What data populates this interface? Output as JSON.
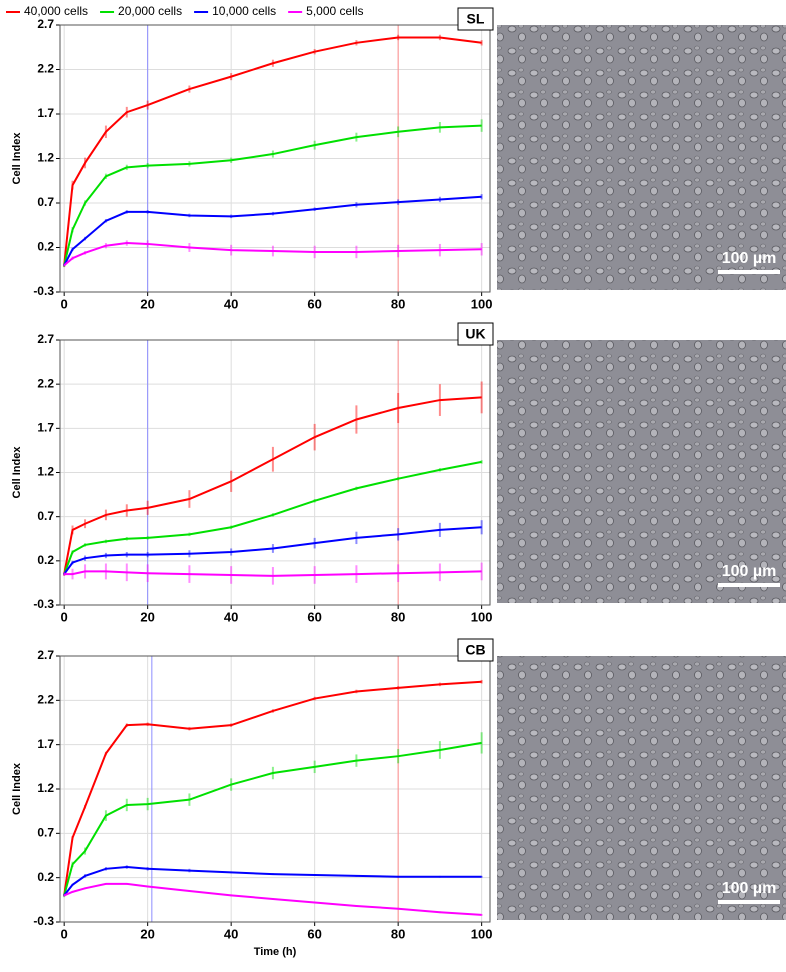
{
  "chart_data": [
    {
      "type": "line",
      "label": "SL",
      "y_label": "Cell Index",
      "x": [
        0,
        2,
        5,
        10,
        15,
        20,
        30,
        40,
        50,
        60,
        70,
        80,
        90,
        100
      ],
      "xlim": [
        -1,
        102
      ],
      "ylim": [
        -0.3,
        2.7
      ],
      "xticks": [
        0,
        20,
        40,
        60,
        80,
        100
      ],
      "yticks": [
        2.7,
        2.2,
        1.7,
        1.2,
        0.7,
        0.2,
        -0.3
      ],
      "grid": true,
      "vlines": [
        {
          "x": 20,
          "color": "#8c8cff"
        },
        {
          "x": 80,
          "color": "#ff8c8c"
        }
      ],
      "scale_bar": "100 µm",
      "series": [
        {
          "name": "40,000 cells",
          "color": "#ff0000",
          "values": [
            0,
            0.9,
            1.15,
            1.5,
            1.72,
            1.8,
            1.98,
            2.12,
            2.27,
            2.4,
            2.5,
            2.56,
            2.56,
            2.5
          ],
          "errors": [
            0.02,
            0.05,
            0.06,
            0.07,
            0.06,
            0.05,
            0.04,
            0.04,
            0.04,
            0.03,
            0.03,
            0.03,
            0.03,
            0.03
          ]
        },
        {
          "name": "20,000 cells",
          "color": "#00e000",
          "values": [
            0,
            0.4,
            0.7,
            1.0,
            1.1,
            1.12,
            1.14,
            1.18,
            1.25,
            1.35,
            1.44,
            1.5,
            1.55,
            1.57
          ],
          "errors": [
            0.02,
            0.03,
            0.03,
            0.03,
            0.03,
            0.03,
            0.03,
            0.03,
            0.04,
            0.05,
            0.05,
            0.06,
            0.06,
            0.07
          ]
        },
        {
          "name": "10,000 cells",
          "color": "#0000ff",
          "values": [
            0,
            0.18,
            0.3,
            0.5,
            0.6,
            0.6,
            0.56,
            0.55,
            0.58,
            0.63,
            0.68,
            0.71,
            0.74,
            0.77
          ],
          "errors": [
            0.01,
            0.02,
            0.02,
            0.02,
            0.02,
            0.02,
            0.02,
            0.02,
            0.02,
            0.02,
            0.03,
            0.03,
            0.03,
            0.03
          ]
        },
        {
          "name": "5,000 cells",
          "color": "#ff00ff",
          "values": [
            0,
            0.08,
            0.14,
            0.22,
            0.25,
            0.24,
            0.2,
            0.17,
            0.16,
            0.15,
            0.15,
            0.16,
            0.17,
            0.18
          ],
          "errors": [
            0.01,
            0.02,
            0.02,
            0.03,
            0.03,
            0.04,
            0.05,
            0.06,
            0.06,
            0.07,
            0.07,
            0.07,
            0.07,
            0.07
          ]
        }
      ]
    },
    {
      "type": "line",
      "label": "UK",
      "y_label": "Cell Index",
      "x": [
        0,
        2,
        5,
        10,
        15,
        20,
        30,
        40,
        50,
        60,
        70,
        80,
        90,
        100
      ],
      "xlim": [
        -1,
        102
      ],
      "ylim": [
        -0.3,
        2.7
      ],
      "xticks": [
        0,
        20,
        40,
        60,
        80,
        100
      ],
      "yticks": [
        2.7,
        2.2,
        1.7,
        1.2,
        0.7,
        0.2,
        -0.3
      ],
      "grid": true,
      "vlines": [
        {
          "x": 20,
          "color": "#8c8cff"
        },
        {
          "x": 80,
          "color": "#ff8c8c"
        }
      ],
      "scale_bar": "100 µm",
      "series": [
        {
          "color": "#ff0000",
          "values": [
            0.05,
            0.55,
            0.62,
            0.72,
            0.77,
            0.8,
            0.9,
            1.1,
            1.35,
            1.6,
            1.8,
            1.93,
            2.02,
            2.05
          ],
          "errors": [
            0.02,
            0.05,
            0.05,
            0.06,
            0.07,
            0.08,
            0.1,
            0.12,
            0.14,
            0.15,
            0.16,
            0.17,
            0.18,
            0.18
          ]
        },
        {
          "color": "#00e000",
          "values": [
            0.05,
            0.3,
            0.38,
            0.42,
            0.45,
            0.46,
            0.5,
            0.58,
            0.72,
            0.88,
            1.02,
            1.13,
            1.23,
            1.32
          ],
          "errors": [
            0.01,
            0.02,
            0.02,
            0.02,
            0.02,
            0.02,
            0.02,
            0.02,
            0.02,
            0.02,
            0.02,
            0.02,
            0.02,
            0.02
          ]
        },
        {
          "color": "#0000ff",
          "values": [
            0.05,
            0.18,
            0.23,
            0.26,
            0.27,
            0.27,
            0.28,
            0.3,
            0.34,
            0.4,
            0.46,
            0.5,
            0.55,
            0.58
          ],
          "errors": [
            0.01,
            0.02,
            0.03,
            0.03,
            0.03,
            0.03,
            0.04,
            0.04,
            0.05,
            0.06,
            0.07,
            0.07,
            0.08,
            0.08
          ]
        },
        {
          "color": "#ff00ff",
          "values": [
            0.05,
            0.05,
            0.08,
            0.08,
            0.07,
            0.06,
            0.05,
            0.04,
            0.03,
            0.04,
            0.05,
            0.06,
            0.07,
            0.08
          ],
          "errors": [
            0.02,
            0.06,
            0.08,
            0.09,
            0.1,
            0.1,
            0.1,
            0.1,
            0.1,
            0.1,
            0.1,
            0.1,
            0.1,
            0.1
          ]
        }
      ]
    },
    {
      "type": "line",
      "label": "CB",
      "y_label": "Cell Index",
      "x_label": "Time (h)",
      "x": [
        0,
        2,
        5,
        10,
        15,
        20,
        30,
        40,
        50,
        60,
        70,
        80,
        90,
        100
      ],
      "xlim": [
        -1,
        102
      ],
      "ylim": [
        -0.3,
        2.7
      ],
      "xticks": [
        0,
        20,
        40,
        60,
        80,
        100
      ],
      "yticks": [
        2.7,
        2.2,
        1.7,
        1.2,
        0.7,
        0.2,
        -0.3
      ],
      "grid": true,
      "vlines": [
        {
          "x": 21,
          "color": "#8c8cff"
        },
        {
          "x": 80,
          "color": "#ff8c8c"
        }
      ],
      "scale_bar": "100 µm",
      "series": [
        {
          "color": "#ff0000",
          "values": [
            0,
            0.65,
            1.0,
            1.6,
            1.92,
            1.93,
            1.88,
            1.92,
            2.08,
            2.22,
            2.3,
            2.34,
            2.38,
            2.41
          ],
          "errors": [
            0.01,
            0.02,
            0.02,
            0.02,
            0.02,
            0.02,
            0.02,
            0.02,
            0.02,
            0.02,
            0.02,
            0.02,
            0.02,
            0.02
          ]
        },
        {
          "color": "#00e000",
          "values": [
            0,
            0.35,
            0.5,
            0.9,
            1.02,
            1.03,
            1.08,
            1.25,
            1.38,
            1.45,
            1.52,
            1.57,
            1.64,
            1.72
          ],
          "errors": [
            0.02,
            0.03,
            0.04,
            0.06,
            0.07,
            0.07,
            0.07,
            0.07,
            0.07,
            0.07,
            0.07,
            0.08,
            0.1,
            0.12
          ]
        },
        {
          "color": "#0000ff",
          "values": [
            0,
            0.12,
            0.22,
            0.3,
            0.32,
            0.3,
            0.28,
            0.26,
            0.24,
            0.23,
            0.22,
            0.21,
            0.21,
            0.21
          ],
          "errors": [
            0.01,
            0.01,
            0.02,
            0.02,
            0.02,
            0.02,
            0.02,
            0.01,
            0.01,
            0.01,
            0.01,
            0.01,
            0.01,
            0.01
          ]
        },
        {
          "color": "#ff00ff",
          "values": [
            0,
            0.04,
            0.08,
            0.13,
            0.13,
            0.1,
            0.05,
            0.0,
            -0.04,
            -0.08,
            -0.12,
            -0.15,
            -0.19,
            -0.22
          ],
          "errors": [
            0.01,
            0.01,
            0.01,
            0.01,
            0.01,
            0.01,
            0.01,
            0.01,
            0.01,
            0.01,
            0.01,
            0.01,
            0.01,
            0.01
          ]
        }
      ]
    }
  ]
}
